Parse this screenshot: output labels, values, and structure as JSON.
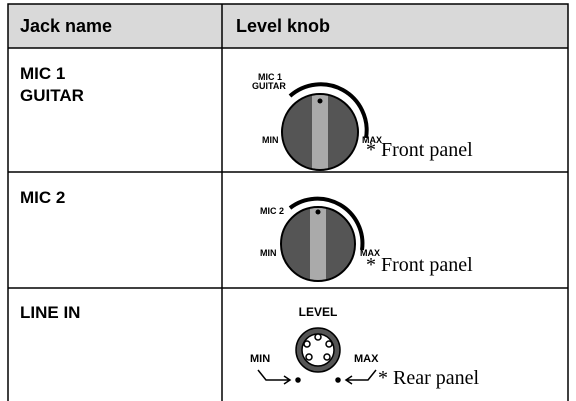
{
  "table": {
    "header": [
      "Jack name",
      "Level knob"
    ],
    "rows": [
      {
        "jack": [
          "MIC 1",
          "GUITAR"
        ],
        "knob": {
          "label": [
            "MIC 1",
            "GUITAR"
          ],
          "min": "MIN",
          "max": "MAX"
        },
        "note": "* Front panel"
      },
      {
        "jack": [
          "MIC 2"
        ],
        "knob": {
          "label": [
            "MIC 2"
          ],
          "min": "MIN",
          "max": "MAX"
        },
        "note": "* Front panel"
      },
      {
        "jack": [
          "LINE IN"
        ],
        "knob": {
          "label": [
            "LEVEL"
          ],
          "min": "MIN",
          "max": "MAX"
        },
        "note": "* Rear panel"
      }
    ]
  }
}
